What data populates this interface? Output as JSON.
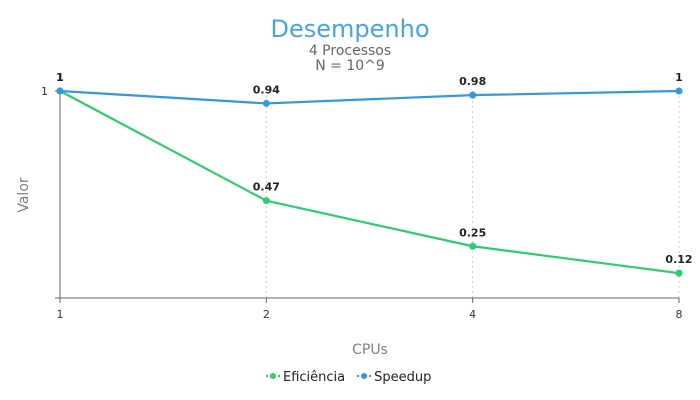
{
  "chart_data": {
    "type": "line",
    "title": "Desempenho",
    "subtitle_lines": [
      "4 Processos",
      "N = 10^9"
    ],
    "xlabel": "CPUs",
    "ylabel": "Valor",
    "categories": [
      "1",
      "2",
      "4",
      "8"
    ],
    "y_tick_labels": [
      "1"
    ],
    "ylim": [
      0,
      1
    ],
    "grid": "vertical dotted lines at each category",
    "legend_position": "bottom-center",
    "series": [
      {
        "name": "Eficiência",
        "values": [
          1,
          0.47,
          0.25,
          0.12
        ],
        "labels": [
          "1",
          "0.47",
          "0.25",
          "0.12"
        ],
        "color": "#2ecc71"
      },
      {
        "name": "Speedup",
        "values": [
          1,
          0.94,
          0.98,
          1
        ],
        "labels": [
          "1",
          "0.94",
          "0.98",
          "1"
        ],
        "color": "#3498db"
      }
    ],
    "colors": {
      "title": "#4aa3df",
      "axis": "#666666",
      "grid": "#cccccc"
    }
  }
}
